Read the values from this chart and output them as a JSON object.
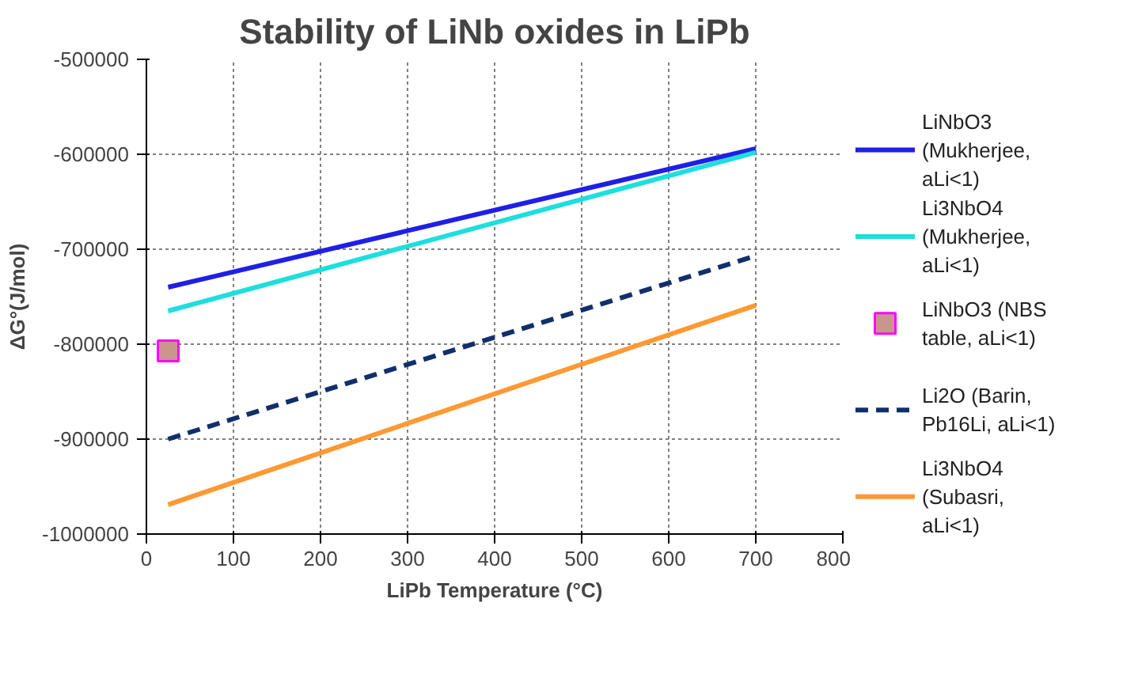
{
  "chart_data": {
    "type": "line",
    "title": "Stability of LiNb oxides in LiPb",
    "xlabel": "LiPb Temperature (°C)",
    "ylabel": "ΔG°(J/mol)",
    "xlim": [
      0,
      800
    ],
    "xticks": [
      0,
      100,
      200,
      300,
      400,
      500,
      600,
      700,
      800
    ],
    "ylim": [
      -1000000,
      -500000
    ],
    "yticks": [
      -1000000,
      -900000,
      -800000,
      -700000,
      -600000,
      -500000
    ],
    "grid": true,
    "legend": "right",
    "line_style": "solid",
    "x": [
      25,
      700
    ],
    "series": [
      {
        "name": "LiNbO3 (Mukherjee, aLi<1)",
        "color": "#1f1fe6",
        "values": [
          -740000,
          -594000
        ]
      },
      {
        "name": "Li3NbO4 (Mukherjee, aLi<1)",
        "color": "#1edede",
        "values": [
          -765000,
          -598000
        ]
      },
      {
        "name": "LiNbO3 (NBS table, aLi<1)",
        "type": "scatter",
        "marker": "square",
        "color": "#c8968c",
        "x": [
          25
        ],
        "values": [
          -807000
        ]
      },
      {
        "name": "Li2O (Barin, Pb16Li, aLi<1)",
        "color": "#112f6b",
        "line_style": "dashed",
        "values": [
          -900000,
          -707000
        ]
      },
      {
        "name": "Li3NbO4 (Subasri, aLi<1)",
        "color": "#ff9933",
        "values": [
          -969000,
          -759000
        ]
      }
    ]
  }
}
